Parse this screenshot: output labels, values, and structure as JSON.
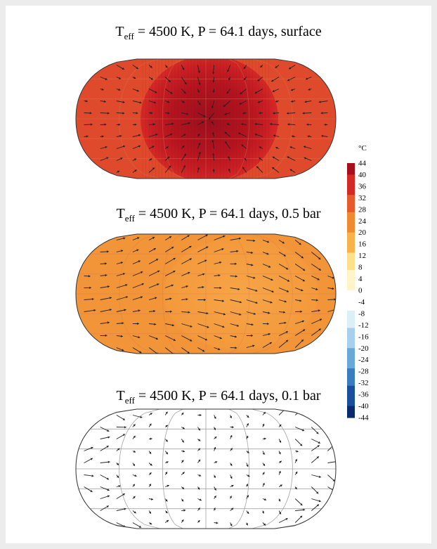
{
  "chart_data": [
    {
      "type": "heatmap",
      "title_main": "T",
      "title_sub": "eff",
      "title_rest": " = 4500 K, P = 64.1 days, surface",
      "projection": "Robinson",
      "grid": true,
      "quiver": true,
      "field": {
        "background_C": 33,
        "hotspot_C": 42,
        "hotspot_longitude_deg": 0
      },
      "wind_pattern": "convergent"
    },
    {
      "type": "heatmap",
      "title_main": "T",
      "title_sub": "eff",
      "title_rest": " = 4500 K, P = 64.1 days, 0.5 bar",
      "projection": "Robinson",
      "grid": true,
      "quiver": true,
      "field": {
        "background_C": 26,
        "hotspot_C": 23,
        "hotspot_longitude_deg": 0
      },
      "wind_pattern": "zonal-jets"
    },
    {
      "type": "heatmap",
      "title_main": "T",
      "title_sub": "eff",
      "title_rest": " = 4500 K, P = 64.1 days, 0.1 bar",
      "projection": "Robinson",
      "grid": true,
      "quiver": true,
      "field": {
        "background_C": 0,
        "hotspot_C": 0,
        "hotspot_longitude_deg": 0
      },
      "wind_pattern": "weak"
    }
  ],
  "colorbar": {
    "unit": "°C",
    "ticks": [
      "44",
      "40",
      "36",
      "32",
      "28",
      "24",
      "20",
      "16",
      "12",
      "8",
      "4",
      "0",
      "-4",
      "-8",
      "-12",
      "-16",
      "-20",
      "-24",
      "-28",
      "-32",
      "-36",
      "-40",
      "-44"
    ],
    "range": [
      -44,
      44
    ],
    "colors": [
      "#0a2a6b",
      "#1a4fa0",
      "#3a7cc0",
      "#6aa8d8",
      "#a8d0ec",
      "#dceef8",
      "#ffffff",
      "#fff4c8",
      "#fde08a",
      "#f9b24a",
      "#f08a30",
      "#e65a2c",
      "#d42a26",
      "#a80f1c"
    ]
  }
}
